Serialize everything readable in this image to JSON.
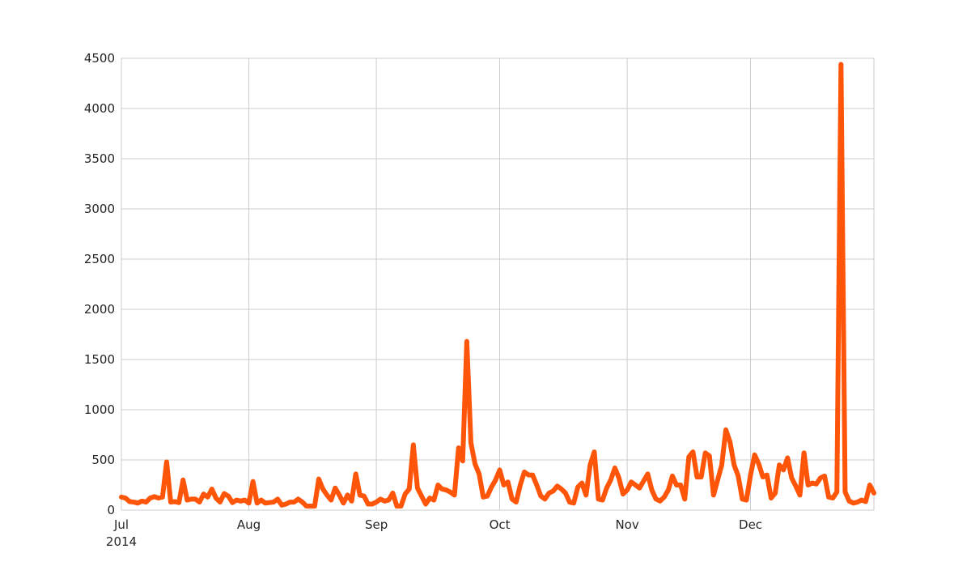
{
  "chart_data": {
    "type": "line",
    "title": "",
    "xlabel": "",
    "ylabel": "",
    "x_range": [
      "2014-07-01",
      "2014-12-31"
    ],
    "ylim": [
      0,
      4500
    ],
    "grid": true,
    "line_color": "#ff5509",
    "y_ticks": [
      "0",
      "500",
      "1000",
      "1500",
      "2000",
      "2500",
      "3000",
      "3500",
      "4000",
      "4500"
    ],
    "x_ticks": [
      {
        "date": "2014-07-01",
        "label": "Jul",
        "sublabel": "2014"
      },
      {
        "date": "2014-08-01",
        "label": "Aug",
        "sublabel": ""
      },
      {
        "date": "2014-09-01",
        "label": "Sep",
        "sublabel": ""
      },
      {
        "date": "2014-10-01",
        "label": "Oct",
        "sublabel": ""
      },
      {
        "date": "2014-11-01",
        "label": "Nov",
        "sublabel": ""
      },
      {
        "date": "2014-12-01",
        "label": "Dec",
        "sublabel": ""
      }
    ],
    "series": [
      {
        "x": [
          "2014-07-01",
          "2014-07-02",
          "2014-07-03",
          "2014-07-04",
          "2014-07-05",
          "2014-07-06",
          "2014-07-07",
          "2014-07-08",
          "2014-07-09",
          "2014-07-10",
          "2014-07-11",
          "2014-07-12",
          "2014-07-13",
          "2014-07-14",
          "2014-07-15",
          "2014-07-16",
          "2014-07-17",
          "2014-07-18",
          "2014-07-19",
          "2014-07-20",
          "2014-07-21",
          "2014-07-22",
          "2014-07-23",
          "2014-07-24",
          "2014-07-25",
          "2014-07-26",
          "2014-07-27",
          "2014-07-28",
          "2014-07-29",
          "2014-07-30",
          "2014-07-31",
          "2014-08-01",
          "2014-08-02",
          "2014-08-03",
          "2014-08-04",
          "2014-08-05",
          "2014-08-06",
          "2014-08-07",
          "2014-08-08",
          "2014-08-09",
          "2014-08-10",
          "2014-08-11",
          "2014-08-12",
          "2014-08-13",
          "2014-08-14",
          "2014-08-15",
          "2014-08-16",
          "2014-08-17",
          "2014-08-18",
          "2014-08-19",
          "2014-08-20",
          "2014-08-21",
          "2014-08-22",
          "2014-08-23",
          "2014-08-24",
          "2014-08-25",
          "2014-08-26",
          "2014-08-27",
          "2014-08-28",
          "2014-08-29",
          "2014-08-30",
          "2014-08-31",
          "2014-09-01",
          "2014-09-02",
          "2014-09-03",
          "2014-09-04",
          "2014-09-05",
          "2014-09-06",
          "2014-09-07",
          "2014-09-08",
          "2014-09-09",
          "2014-09-10",
          "2014-09-11",
          "2014-09-12",
          "2014-09-13",
          "2014-09-14",
          "2014-09-15",
          "2014-09-16",
          "2014-09-17",
          "2014-09-18",
          "2014-09-19",
          "2014-09-20",
          "2014-09-21",
          "2014-09-22",
          "2014-09-23",
          "2014-09-24",
          "2014-09-25",
          "2014-09-26",
          "2014-09-27",
          "2014-09-28",
          "2014-09-29",
          "2014-09-30",
          "2014-10-01",
          "2014-10-02",
          "2014-10-03",
          "2014-10-04",
          "2014-10-05",
          "2014-10-06",
          "2014-10-07",
          "2014-10-08",
          "2014-10-09",
          "2014-10-10",
          "2014-10-11",
          "2014-10-12",
          "2014-10-13",
          "2014-10-14",
          "2014-10-15",
          "2014-10-16",
          "2014-10-17",
          "2014-10-18",
          "2014-10-19",
          "2014-10-20",
          "2014-10-21",
          "2014-10-22",
          "2014-10-23",
          "2014-10-24",
          "2014-10-25",
          "2014-10-26",
          "2014-10-27",
          "2014-10-28",
          "2014-10-29",
          "2014-10-30",
          "2014-10-31",
          "2014-11-01",
          "2014-11-02",
          "2014-11-03",
          "2014-11-04",
          "2014-11-05",
          "2014-11-06",
          "2014-11-07",
          "2014-11-08",
          "2014-11-09",
          "2014-11-10",
          "2014-11-11",
          "2014-11-12",
          "2014-11-13",
          "2014-11-14",
          "2014-11-15",
          "2014-11-16",
          "2014-11-17",
          "2014-11-18",
          "2014-11-19",
          "2014-11-20",
          "2014-11-21",
          "2014-11-22",
          "2014-11-23",
          "2014-11-24",
          "2014-11-25",
          "2014-11-26",
          "2014-11-27",
          "2014-11-28",
          "2014-11-29",
          "2014-11-30",
          "2014-12-01",
          "2014-12-02",
          "2014-12-03",
          "2014-12-04",
          "2014-12-05",
          "2014-12-06",
          "2014-12-07",
          "2014-12-08",
          "2014-12-09",
          "2014-12-10",
          "2014-12-11",
          "2014-12-12",
          "2014-12-13",
          "2014-12-14",
          "2014-12-15",
          "2014-12-16",
          "2014-12-17",
          "2014-12-18",
          "2014-12-19",
          "2014-12-20",
          "2014-12-21",
          "2014-12-22",
          "2014-12-23",
          "2014-12-24",
          "2014-12-25",
          "2014-12-26",
          "2014-12-27",
          "2014-12-28",
          "2014-12-29",
          "2014-12-30",
          "2014-12-31"
        ],
        "y": [
          130,
          120,
          85,
          80,
          70,
          90,
          80,
          120,
          135,
          120,
          130,
          480,
          80,
          85,
          75,
          300,
          100,
          110,
          110,
          80,
          160,
          130,
          210,
          120,
          80,
          165,
          140,
          75,
          100,
          90,
          100,
          70,
          285,
          70,
          100,
          70,
          75,
          80,
          110,
          50,
          60,
          80,
          80,
          110,
          80,
          40,
          40,
          40,
          310,
          210,
          150,
          100,
          220,
          150,
          70,
          150,
          90,
          360,
          150,
          140,
          60,
          60,
          80,
          110,
          90,
          100,
          170,
          40,
          40,
          160,
          210,
          650,
          220,
          140,
          60,
          120,
          100,
          250,
          210,
          200,
          180,
          150,
          620,
          490,
          1680,
          670,
          460,
          360,
          130,
          140,
          230,
          300,
          400,
          250,
          280,
          110,
          80,
          250,
          380,
          350,
          350,
          250,
          140,
          110,
          170,
          190,
          240,
          210,
          170,
          80,
          70,
          230,
          270,
          150,
          450,
          580,
          110,
          100,
          220,
          300,
          420,
          320,
          160,
          200,
          280,
          250,
          220,
          290,
          360,
          200,
          110,
          90,
          130,
          200,
          340,
          250,
          250,
          110,
          530,
          580,
          330,
          330,
          570,
          540,
          150,
          300,
          450,
          800,
          680,
          450,
          340,
          110,
          100,
          350,
          550,
          460,
          330,
          350,
          120,
          170,
          450,
          400,
          520,
          320,
          240,
          150,
          570,
          250,
          270,
          260,
          320,
          340,
          130,
          120,
          180,
          4440,
          180,
          90,
          70,
          80,
          100,
          85,
          250,
          170
        ]
      }
    ]
  }
}
